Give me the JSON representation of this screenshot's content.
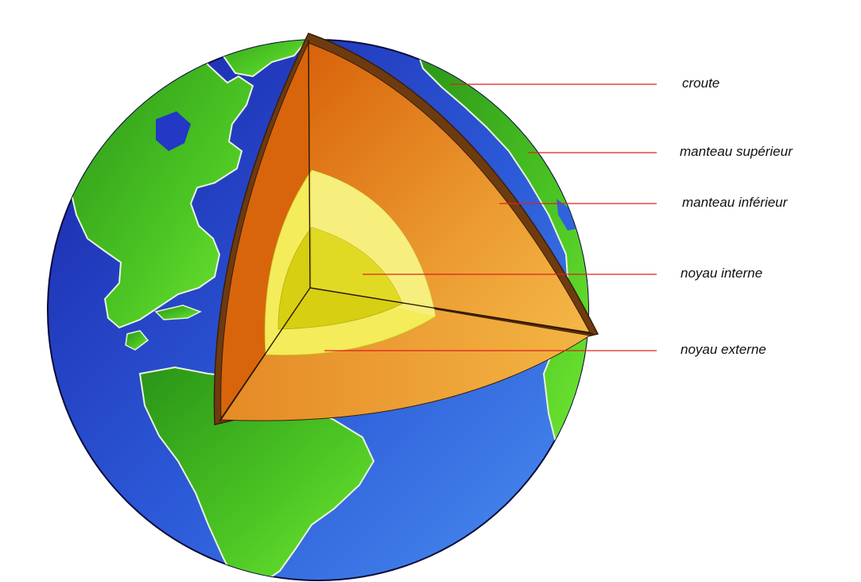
{
  "labels": {
    "crust": "croute",
    "upper_mantle": "manteau supérieur",
    "lower_mantle": "manteau inférieur",
    "inner_core": "noyau interne",
    "outer_core": "noyau externe"
  },
  "colors": {
    "ocean_dark": "#1c2fb8",
    "ocean_light": "#3f86ee",
    "land_dark": "#2f9a1e",
    "land_light": "#66e02c",
    "crust": "#6e3b10",
    "mantle_dark": "#d9660a",
    "mantle_light": "#f2b040",
    "outer_core": "#f5ef7a",
    "inner_core": "#d6cf10",
    "leader_line": "#e0201f"
  }
}
